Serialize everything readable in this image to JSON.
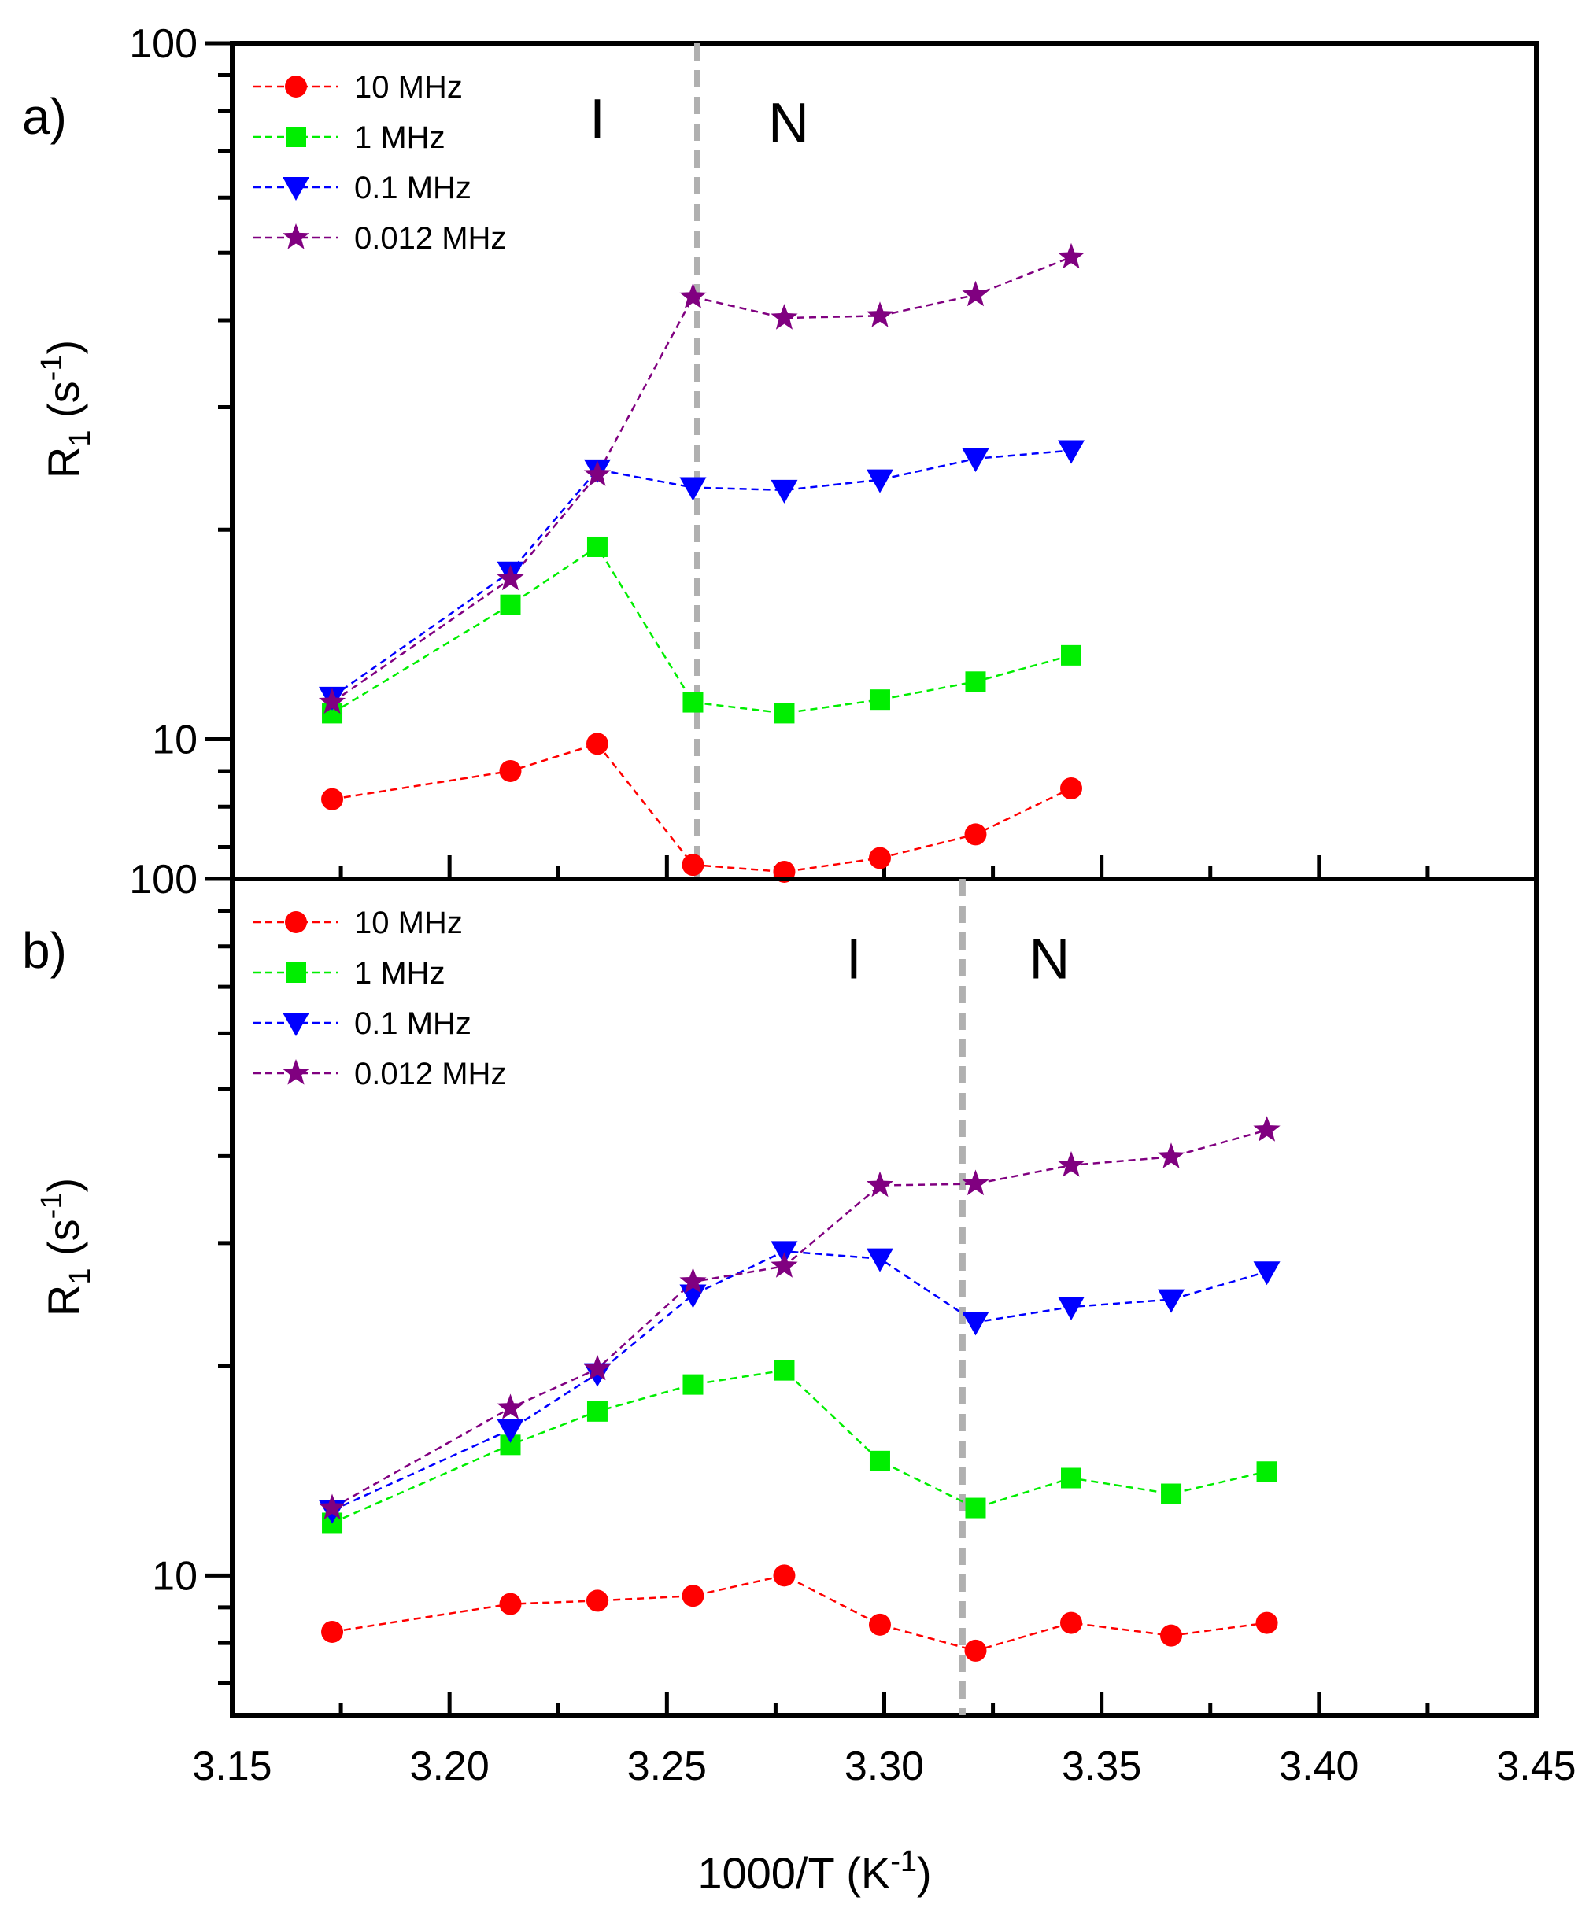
{
  "chart_data": {
    "type": "scatter",
    "shared_x": {
      "label_main": "1000/T (K",
      "label_sup": "-1",
      "label_close": ")",
      "range": [
        3.15,
        3.45
      ],
      "major_ticks": [
        3.15,
        3.2,
        3.25,
        3.3,
        3.35,
        3.4,
        3.45
      ],
      "tick_labels": [
        "3.15",
        "3.20",
        "3.25",
        "3.30",
        "3.35",
        "3.40",
        "3.45"
      ],
      "minor_step": 0.025
    },
    "panels": [
      {
        "id": "a",
        "panel_label": "a)",
        "ylabel_main": "R",
        "ylabel_sub": "1",
        "ylabel_rest": " (s",
        "ylabel_sup": "-1",
        "ylabel_close": ")",
        "yscale": "log",
        "ylim": [
          6.3,
          100
        ],
        "y_tick_labels": [
          {
            "value": 10,
            "text": "10"
          },
          {
            "value": 100,
            "text": "100"
          }
        ],
        "phase_boundary_x": 3.257,
        "phase_labels": [
          {
            "text": "I",
            "x": 3.234,
            "y": 73
          },
          {
            "text": "N",
            "x": 3.278,
            "y": 72
          }
        ],
        "series": [
          {
            "name": "10 MHz",
            "color": "#ff0000",
            "marker": "circle",
            "x": [
              3.173,
              3.214,
              3.234,
              3.256,
              3.277,
              3.299,
              3.321,
              3.343
            ],
            "y": [
              8.2,
              9.0,
              9.85,
              6.6,
              6.45,
              6.75,
              7.3,
              8.5
            ]
          },
          {
            "name": "1 MHz",
            "color": "#00ee00",
            "marker": "square",
            "x": [
              3.173,
              3.214,
              3.234,
              3.256,
              3.277,
              3.299,
              3.321,
              3.343
            ],
            "y": [
              10.9,
              15.6,
              18.9,
              11.3,
              10.9,
              11.4,
              12.1,
              13.2
            ]
          },
          {
            "name": "0.1 MHz",
            "color": "#0000ff",
            "marker": "triangle-down",
            "x": [
              3.173,
              3.214,
              3.234,
              3.256,
              3.277,
              3.299,
              3.321,
              3.343
            ],
            "y": [
              11.5,
              17.4,
              24.4,
              23.0,
              22.8,
              23.6,
              25.3,
              26.0
            ]
          },
          {
            "name": "0.012 MHz",
            "color": "#800080",
            "marker": "star",
            "x": [
              3.173,
              3.214,
              3.234,
              3.256,
              3.277,
              3.299,
              3.321,
              3.343
            ],
            "y": [
              11.3,
              17.0,
              24.0,
              43.2,
              40.3,
              40.6,
              43.5,
              49.3
            ]
          }
        ]
      },
      {
        "id": "b",
        "panel_label": "b)",
        "ylabel_main": "R",
        "ylabel_sub": "1",
        "ylabel_rest": " (s",
        "ylabel_sup": "-1",
        "ylabel_close": ")",
        "yscale": "log",
        "ylim": [
          6.3,
          100
        ],
        "y_tick_labels": [
          {
            "value": 10,
            "text": "10"
          },
          {
            "value": 100,
            "text": "100"
          }
        ],
        "phase_boundary_x": 3.318,
        "phase_labels": [
          {
            "text": "I",
            "x": 3.293,
            "y": 72
          },
          {
            "text": "N",
            "x": 3.338,
            "y": 72
          }
        ],
        "series": [
          {
            "name": "10 MHz",
            "color": "#ff0000",
            "marker": "circle",
            "x": [
              3.173,
              3.214,
              3.234,
              3.256,
              3.277,
              3.299,
              3.321,
              3.343,
              3.366,
              3.388
            ],
            "y": [
              8.3,
              9.1,
              9.2,
              9.35,
              10.0,
              8.5,
              7.8,
              8.55,
              8.2,
              8.55
            ]
          },
          {
            "name": "1 MHz",
            "color": "#00ee00",
            "marker": "square",
            "x": [
              3.173,
              3.214,
              3.234,
              3.256,
              3.277,
              3.299,
              3.321,
              3.343,
              3.366,
              3.388
            ],
            "y": [
              11.9,
              15.4,
              17.2,
              18.8,
              19.7,
              14.6,
              12.5,
              13.8,
              13.1,
              14.1
            ]
          },
          {
            "name": "0.1 MHz",
            "color": "#0000ff",
            "marker": "triangle-down",
            "x": [
              3.173,
              3.214,
              3.234,
              3.256,
              3.277,
              3.299,
              3.321,
              3.343,
              3.366,
              3.388
            ],
            "y": [
              12.4,
              16.2,
              19.5,
              25.3,
              29.2,
              28.5,
              23.1,
              24.3,
              24.9,
              27.3
            ]
          },
          {
            "name": "0.012 MHz",
            "color": "#800080",
            "marker": "star",
            "x": [
              3.173,
              3.214,
              3.234,
              3.256,
              3.277,
              3.299,
              3.321,
              3.343,
              3.366,
              3.388
            ],
            "y": [
              12.5,
              17.4,
              19.8,
              26.4,
              27.8,
              36.3,
              36.5,
              38.8,
              39.9,
              43.6
            ]
          }
        ]
      }
    ]
  }
}
